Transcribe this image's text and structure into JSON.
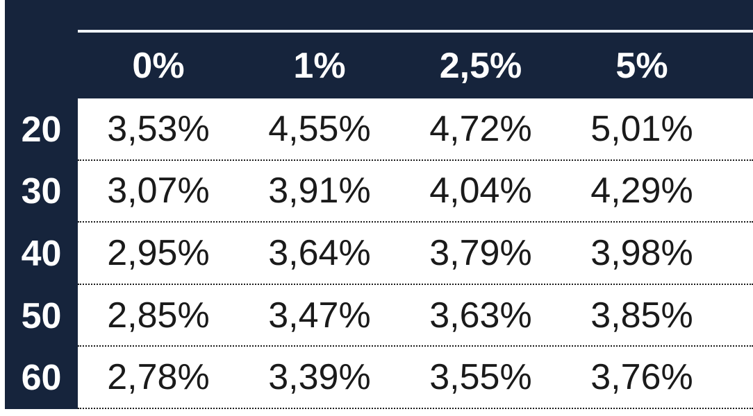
{
  "chart_data": {
    "type": "table",
    "columns": [
      "0%",
      "1%",
      "2,5%",
      "5%"
    ],
    "row_labels": [
      "20",
      "30",
      "40",
      "50",
      "60"
    ],
    "values_display": [
      [
        "3,53%",
        "4,55%",
        "4,72%",
        "5,01%"
      ],
      [
        "3,07%",
        "3,91%",
        "4,04%",
        "4,29%"
      ],
      [
        "2,95%",
        "3,64%",
        "3,79%",
        "3,98%"
      ],
      [
        "2,85%",
        "3,47%",
        "3,63%",
        "3,85%"
      ],
      [
        "2,78%",
        "3,39%",
        "3,55%",
        "3,76%"
      ]
    ],
    "values_numeric_percent": [
      [
        3.53,
        4.55,
        4.72,
        5.01
      ],
      [
        3.07,
        3.91,
        4.04,
        4.29
      ],
      [
        2.95,
        3.64,
        3.79,
        3.98
      ],
      [
        2.85,
        3.47,
        3.63,
        3.85
      ],
      [
        2.78,
        3.39,
        3.55,
        3.76
      ]
    ],
    "decimal_separator": ","
  },
  "colors": {
    "header_bg": "#16243c",
    "header_text": "#ffffff",
    "row_label_bg": "#16243c",
    "row_label_text": "#ffffff",
    "cell_bg": "#ffffff",
    "cell_text": "#1a1a1a",
    "top_rule": "#f0f3f6",
    "row_divider_dotted": "#1a1a1a"
  }
}
